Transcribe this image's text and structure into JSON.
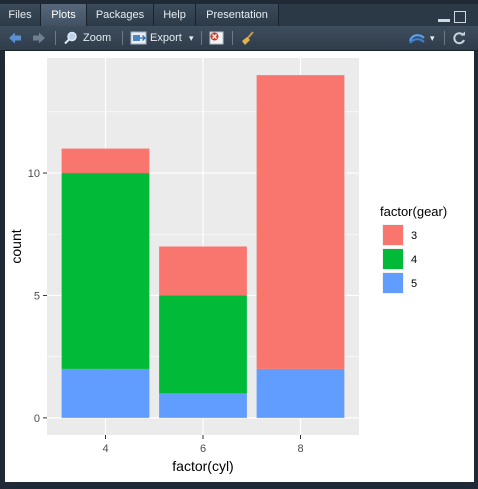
{
  "tabs": [
    {
      "label": "Files"
    },
    {
      "label": "Plots"
    },
    {
      "label": "Packages"
    },
    {
      "label": "Help"
    },
    {
      "label": "Presentation"
    }
  ],
  "toolbar": {
    "zoom_label": "Zoom",
    "export_label": "Export",
    "export_caret": "▾",
    "publish_caret": "▾"
  },
  "chart_data": {
    "type": "bar",
    "stacked": true,
    "categories": [
      "4",
      "6",
      "8"
    ],
    "series": [
      {
        "name": "3",
        "values": [
          1,
          2,
          12
        ],
        "color": "#F8766D"
      },
      {
        "name": "4",
        "values": [
          8,
          4,
          0
        ],
        "color": "#00BA38"
      },
      {
        "name": "5",
        "values": [
          2,
          1,
          2
        ],
        "color": "#619CFF"
      }
    ],
    "xlabel": "factor(cyl)",
    "ylabel": "count",
    "legend_title": "factor(gear)",
    "legend_position": "right",
    "yticks": [
      0,
      5,
      10
    ],
    "ylim": [
      -0.7,
      14.7
    ],
    "grid": true,
    "panel_color": "#EBEBEB"
  }
}
